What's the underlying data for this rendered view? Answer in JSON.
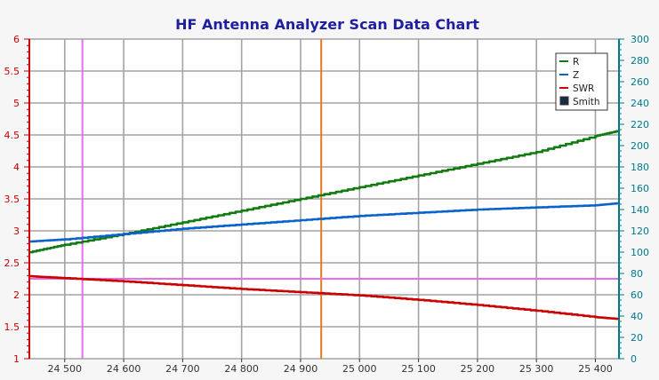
{
  "title": "HF Antenna Analyzer Scan Data Chart",
  "colors": {
    "background": "#f6f6f6",
    "plot_background": "#ffffff",
    "grid": "#a3a3a3",
    "left_axis": "#cc0000",
    "right_axis": "#007a8a",
    "title": "#1f1fa0",
    "r": "#117a11",
    "z": "#0a62cc",
    "swr": "#cc0000",
    "marker_vertical": "#e66ee6",
    "marker_center": "#e87a1e",
    "marker_horizontal": "#e66ee6"
  },
  "chart_data": {
    "type": "line",
    "title": "HF Antenna Analyzer Scan Data Chart",
    "xlabel": "",
    "ylabel": "",
    "xlim": [
      24440,
      25440
    ],
    "x_ticks": [
      24500,
      24600,
      24700,
      24800,
      24900,
      25000,
      25100,
      25200,
      25300,
      25400
    ],
    "x_tick_labels": [
      "24 500",
      "24 600",
      "24 700",
      "24 800",
      "24 900",
      "25 000",
      "25 100",
      "25 200",
      "25 300",
      "25 400"
    ],
    "y_left": {
      "lim": [
        1,
        6
      ],
      "ticks": [
        1,
        1.5,
        2,
        2.5,
        3,
        3.5,
        4,
        4.5,
        5,
        5.5,
        6
      ],
      "tick_labels": [
        "1",
        "1.5",
        "2",
        "2.5",
        "3",
        "3.5",
        "4",
        "4.5",
        "5",
        "5.5",
        "6"
      ]
    },
    "y_right": {
      "lim": [
        0,
        300
      ],
      "ticks": [
        0,
        20,
        40,
        60,
        80,
        100,
        120,
        140,
        160,
        180,
        200,
        220,
        240,
        260,
        280,
        300
      ],
      "tick_labels": [
        "0",
        "20",
        "40",
        "60",
        "80",
        "100",
        "120",
        "140",
        "160",
        "180",
        "200",
        "220",
        "240",
        "260",
        "280",
        "300"
      ]
    },
    "grid": true,
    "legend_position": "top-right",
    "legend": [
      "R",
      "Z",
      "SWR",
      "Smith"
    ],
    "series": [
      {
        "name": "R",
        "axis": "right",
        "color": "#117a11",
        "x": [
          24440,
          24500,
          24600,
          24700,
          24800,
          24900,
          25000,
          25100,
          25200,
          25300,
          25400,
          25440
        ],
        "y": [
          100,
          107,
          117,
          128,
          139,
          150,
          161,
          172,
          183,
          194,
          209,
          214
        ]
      },
      {
        "name": "Z",
        "axis": "right",
        "color": "#0a62cc",
        "x": [
          24440,
          24500,
          24600,
          24700,
          24800,
          24900,
          25000,
          25100,
          25200,
          25300,
          25400,
          25440
        ],
        "y": [
          110,
          112,
          117,
          122,
          126,
          130,
          134,
          137,
          140,
          142,
          144,
          146
        ]
      },
      {
        "name": "SWR",
        "axis": "left",
        "color": "#cc0000",
        "x": [
          24440,
          24500,
          24600,
          24700,
          24800,
          24900,
          25000,
          25100,
          25200,
          25300,
          25400,
          25440
        ],
        "y": [
          2.29,
          2.26,
          2.21,
          2.15,
          2.09,
          2.04,
          1.99,
          1.92,
          1.84,
          1.75,
          1.65,
          1.62
        ]
      }
    ],
    "markers": {
      "vertical_x": [
        24530,
        24935
      ],
      "horizontal_y_left": 2.25
    }
  }
}
